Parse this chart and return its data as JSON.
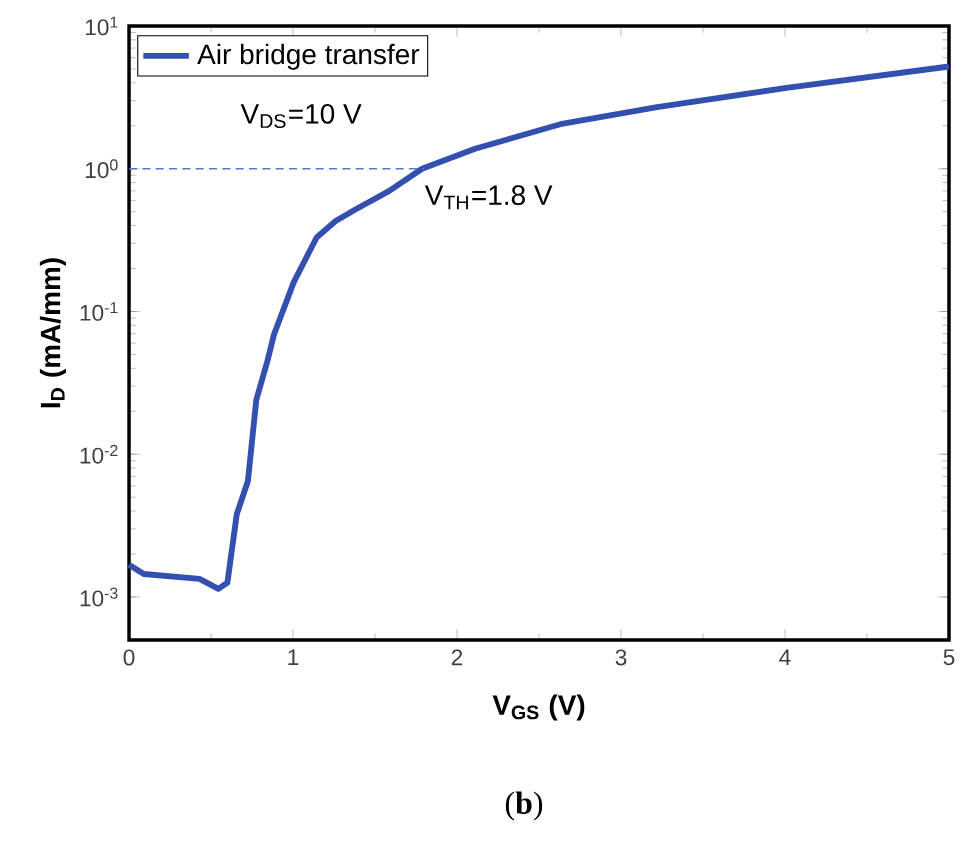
{
  "chart_data": {
    "type": "line",
    "xlabel": "**V$_{GS}$ (V)**",
    "ylabel": "**I$_{D}$ (mA/mm)**",
    "xlim": [
      0,
      5
    ],
    "ylim": [
      0.0005,
      10
    ],
    "log": "y",
    "legend": "top left",
    "xticks": [
      0,
      1,
      2,
      3,
      4,
      5
    ],
    "yticks": [
      {
        "value": 0.001,
        "label": "10$^{-3}$"
      },
      {
        "value": 0.01,
        "label": "10$^{-2}$"
      },
      {
        "value": 0.1,
        "label": "10$^{-1}$"
      },
      {
        "value": 1,
        "label": "10$^{0}$"
      },
      {
        "value": 10,
        "label": "10$^{1}$"
      }
    ],
    "series": [
      {
        "name": "Air bridge transfer",
        "color": "#3350b0",
        "x": [
          0,
          0.09,
          0.43,
          0.545,
          0.6,
          0.657,
          0.725,
          0.776,
          0.844,
          0.884,
          1.004,
          1.144,
          1.26,
          1.383,
          1.587,
          1.787,
          2.11,
          2.63,
          3.22,
          4.02,
          5.0
        ],
        "values": [
          0.00168,
          0.00145,
          0.00134,
          0.00114,
          0.00126,
          0.0038,
          0.0065,
          0.024,
          0.045,
          0.069,
          0.16,
          0.33,
          0.43,
          0.52,
          0.7,
          1.0,
          1.38,
          2.05,
          2.7,
          3.7,
          5.2
        ]
      },
      {
        "type": "line",
        "color": "#5577d0",
        "line_style": "dashed",
        "x": [
          0,
          1.8
        ],
        "values": [
          1,
          1
        ]
      }
    ],
    "annotations": [
      "V$_{DS}$=10 V",
      {
        "text": "V$_{TH}$=1.8 V",
        "x": 1.8,
        "y": 1
      },
      "(**b**)"
    ]
  }
}
